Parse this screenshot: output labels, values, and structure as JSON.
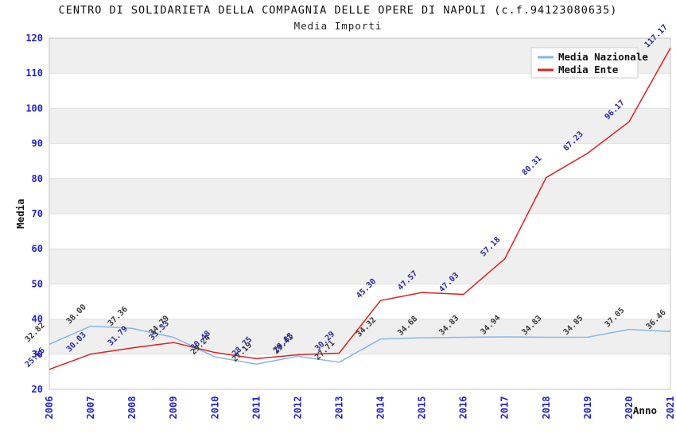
{
  "title": "CENTRO DI SOLIDARIETA DELLA COMPAGNIA DELLE OPERE DI NAPOLI (c.f.94123080635)",
  "subtitle": "Media Importi",
  "chart_data": {
    "type": "line",
    "x": [
      "2006",
      "2007",
      "2008",
      "2009",
      "2010",
      "2011",
      "2012",
      "2013",
      "2014",
      "2015",
      "2016",
      "2017",
      "2018",
      "2019",
      "2020",
      "2021"
    ],
    "series": [
      {
        "name": "Media Nazionale",
        "color": "#86b7e8",
        "label_color": "#3a3a3a",
        "values": [
          32.82,
          38.0,
          37.36,
          34.79,
          29.24,
          27.19,
          29.41,
          27.71,
          34.32,
          34.68,
          34.83,
          34.94,
          34.83,
          34.85,
          37.05,
          36.46
        ]
      },
      {
        "name": "Media Ente",
        "color": "#e02020",
        "label_color": "#2b2b9e",
        "values": [
          25.66,
          30.03,
          31.79,
          33.33,
          30.48,
          28.75,
          29.83,
          30.29,
          45.3,
          47.57,
          47.03,
          57.18,
          80.31,
          87.23,
          96.17,
          117.17
        ]
      }
    ],
    "xlabel": "Anno",
    "ylabel": "Media",
    "ylim": [
      20,
      120
    ],
    "ytick_step": 10,
    "grid": true,
    "bands": true,
    "legend_position": "top-right",
    "value_label_decimals": 2
  },
  "colors": {
    "axis_tick_text": "#2323cd",
    "band_fill": "#efefef",
    "gridline": "#e0e0e0",
    "plot_border": "#c6c6c6",
    "legend_border": "#cccccc",
    "legend_background": "#ffffff"
  }
}
